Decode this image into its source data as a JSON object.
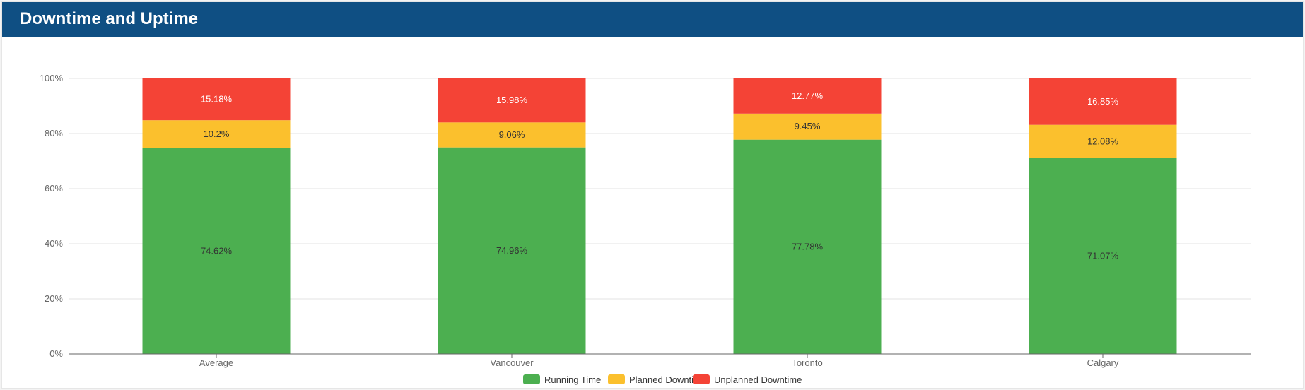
{
  "header": {
    "title": "Downtime and Uptime"
  },
  "chart_data": {
    "type": "bar",
    "stacked": true,
    "title": "",
    "xlabel": "",
    "ylabel": "",
    "ylim": [
      0,
      100
    ],
    "y_ticks": [
      "0%",
      "20%",
      "40%",
      "60%",
      "80%",
      "100%"
    ],
    "categories": [
      "Average",
      "Vancouver",
      "Toronto",
      "Calgary"
    ],
    "grid": true,
    "legend_position": "bottom-center",
    "series": [
      {
        "name": "Running Time",
        "color": "#4caf50",
        "label_color": "#333333",
        "values": [
          74.62,
          74.96,
          77.78,
          71.07
        ],
        "labels": [
          "74.62%",
          "74.96%",
          "77.78%",
          "71.07%"
        ]
      },
      {
        "name": "Planned Downtime",
        "color": "#fbc02d",
        "label_color": "#333333",
        "values": [
          10.2,
          9.06,
          9.45,
          12.08
        ],
        "labels": [
          "10.2%",
          "9.06%",
          "9.45%",
          "12.08%"
        ]
      },
      {
        "name": "Unplanned Downtime",
        "color": "#f44336",
        "label_color": "#ffffff",
        "values": [
          15.18,
          15.98,
          12.77,
          16.85
        ],
        "labels": [
          "15.18%",
          "15.98%",
          "12.77%",
          "16.85%"
        ]
      }
    ]
  }
}
